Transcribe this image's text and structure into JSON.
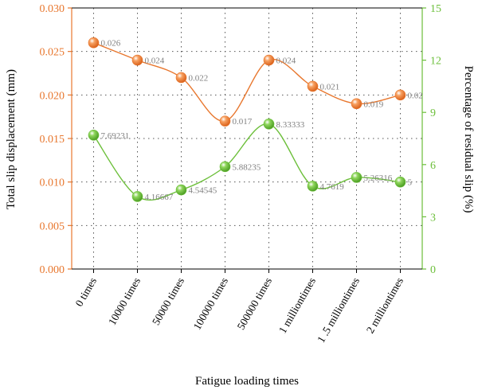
{
  "chart_data": {
    "type": "line",
    "title": "",
    "xlabel": "Fatigue loading times",
    "ylabel_left": "Total slip displacement (mm)",
    "ylabel_right": "Percentage of residual slip (%)",
    "categories": [
      "0 times",
      "10000 times",
      "50000 times",
      "100000 times",
      "500000 times",
      "1 milliontimes",
      "1 .5 milliontimes",
      "2 milliontimes"
    ],
    "y_left": {
      "lim": [
        0,
        0.03
      ],
      "ticks": [
        "0.000",
        "0.005",
        "0.010",
        "0.015",
        "0.020",
        "0.025",
        "0.030"
      ],
      "color": "#e8772e"
    },
    "y_right": {
      "lim": [
        0,
        15
      ],
      "ticks": [
        "0",
        "3",
        "6",
        "9",
        "12",
        "15"
      ],
      "color": "#6cbf3a"
    },
    "grid": true,
    "series": [
      {
        "axis": "left",
        "color": "#e8772e",
        "values": [
          0.026,
          0.024,
          0.022,
          0.017,
          0.024,
          0.021,
          0.019,
          0.02
        ],
        "labels": [
          "0.026",
          "0.024",
          "0.022",
          "0.017",
          "0.024",
          "0.021",
          "0.019",
          "0.02"
        ]
      },
      {
        "axis": "right",
        "color": "#6cbf3a",
        "values": [
          7.69231,
          4.16667,
          4.54545,
          5.88235,
          8.33333,
          4.7619,
          5.26316,
          5
        ],
        "labels": [
          "7.69231",
          "4.16667",
          "4.54545",
          "5.88235",
          "8.33333",
          "4.7619",
          "5.26316",
          "5"
        ]
      }
    ]
  }
}
